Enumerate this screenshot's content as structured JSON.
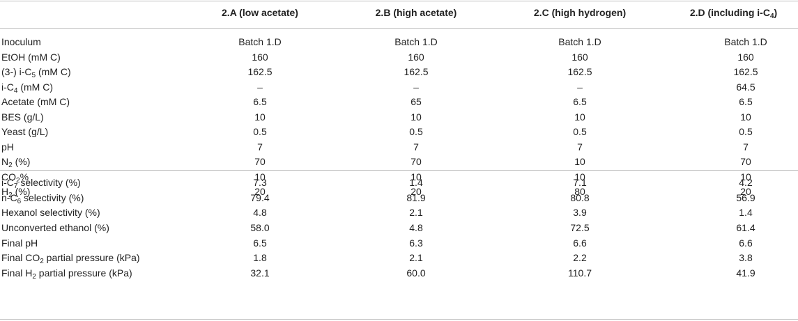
{
  "header": {
    "col1": "2.A (low acetate)",
    "col2": "2.B (high acetate)",
    "col3": "2.C (high hydrogen)",
    "col4_pre": "2.D (including i-C",
    "col4_sub": "4",
    "col4_post": ")"
  },
  "section_conditions": {
    "rows": [
      {
        "label_pre": "Inoculum",
        "label_sub": "",
        "label_post": "",
        "values": [
          "Batch 1.D",
          "Batch 1.D",
          "Batch 1.D",
          "Batch 1.D"
        ]
      },
      {
        "label_pre": "EtOH (mM C)",
        "label_sub": "",
        "label_post": "",
        "values": [
          "160",
          "160",
          "160",
          "160"
        ]
      },
      {
        "label_pre": "(3-) i-C",
        "label_sub": "5",
        "label_post": " (mM C)",
        "values": [
          "162.5",
          "162.5",
          "162.5",
          "162.5"
        ]
      },
      {
        "label_pre": "i-C",
        "label_sub": "4",
        "label_post": " (mM C)",
        "values": [
          "–",
          "–",
          "–",
          "64.5"
        ]
      },
      {
        "label_pre": "Acetate (mM C)",
        "label_sub": "",
        "label_post": "",
        "values": [
          "6.5",
          "65",
          "6.5",
          "6.5"
        ]
      },
      {
        "label_pre": "BES (g/L)",
        "label_sub": "",
        "label_post": "",
        "values": [
          "10",
          "10",
          "10",
          "10"
        ]
      },
      {
        "label_pre": "Yeast (g/L)",
        "label_sub": "",
        "label_post": "",
        "values": [
          "0.5",
          "0.5",
          "0.5",
          "0.5"
        ]
      },
      {
        "label_pre": "pH",
        "label_sub": "",
        "label_post": "",
        "values": [
          "7",
          "7",
          "7",
          "7"
        ]
      },
      {
        "label_pre": "N",
        "label_sub": "2",
        "label_post": " (%)",
        "values": [
          "70",
          "70",
          "10",
          "70"
        ]
      },
      {
        "label_pre": "CO",
        "label_sub": "2",
        "label_post": "%",
        "values": [
          "10",
          "10",
          "10",
          "10"
        ]
      },
      {
        "label_pre": "H",
        "label_sub": "2",
        "label_post": " (%)",
        "values": [
          "20",
          "20",
          "80",
          "20"
        ]
      }
    ]
  },
  "section_results": {
    "rows": [
      {
        "label_pre": "i-C",
        "label_sub": "7",
        "label_post": " selectivity (%)",
        "values": [
          "7.3",
          "1.4",
          "7.1",
          "4.2"
        ]
      },
      {
        "label_pre": "n-C",
        "label_sub": "6",
        "label_post": " selectivity (%)",
        "values": [
          "79.4",
          "81.9",
          "80.8",
          "56.9"
        ]
      },
      {
        "label_pre": "Hexanol selectivity (%)",
        "label_sub": "",
        "label_post": "",
        "values": [
          "4.8",
          "2.1",
          "3.9",
          "1.4"
        ]
      },
      {
        "label_pre": "Unconverted ethanol (%)",
        "label_sub": "",
        "label_post": "",
        "values": [
          "58.0",
          "4.8",
          "72.5",
          "61.4"
        ]
      },
      {
        "label_pre": "Final pH",
        "label_sub": "",
        "label_post": "",
        "values": [
          "6.5",
          "6.3",
          "6.6",
          "6.6"
        ]
      },
      {
        "label_pre": "Final CO",
        "label_sub": "2",
        "label_post": " partial pressure (kPa)",
        "values": [
          "1.8",
          "2.1",
          "2.2",
          "3.8"
        ]
      },
      {
        "label_pre": "Final H",
        "label_sub": "2",
        "label_post": " partial pressure (kPa)",
        "values": [
          "32.1",
          "60.0",
          "110.7",
          "41.9"
        ]
      }
    ]
  }
}
